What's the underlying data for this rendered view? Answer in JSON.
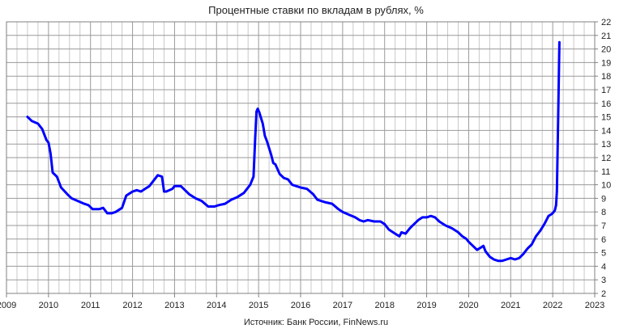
{
  "chart_data": {
    "type": "line",
    "title": "Процентные ставки по вкладам в рублях, %",
    "source": "Источник: Банк России, FinNews.ru",
    "xlabel": "",
    "ylabel": "",
    "xlim": [
      2009,
      2023
    ],
    "ylim": [
      2,
      22
    ],
    "x_ticks": [
      "2009",
      "2010",
      "2011",
      "2012",
      "2013",
      "2014",
      "2015",
      "2016",
      "2017",
      "2018",
      "2019",
      "2020",
      "2021",
      "2022",
      "2023"
    ],
    "y_ticks": [
      "2",
      "3",
      "4",
      "5",
      "6",
      "7",
      "8",
      "9",
      "10",
      "11",
      "12",
      "13",
      "14",
      "15",
      "16",
      "17",
      "18",
      "19",
      "20",
      "21",
      "22"
    ],
    "grid": true,
    "line_color": "#0000ff",
    "series": [
      {
        "x": [
          2009.5,
          2009.6,
          2009.75,
          2009.85,
          2009.95,
          2010.0,
          2010.05,
          2010.1,
          2010.2,
          2010.3,
          2010.45,
          2010.55,
          2010.7,
          2010.85,
          2010.95,
          2011.05,
          2011.2,
          2011.3,
          2011.4,
          2011.5,
          2011.6,
          2011.75,
          2011.85,
          2011.95,
          2012.0,
          2012.1,
          2012.2,
          2012.3,
          2012.4,
          2012.5,
          2012.6,
          2012.7,
          2012.75,
          2012.8,
          2012.95,
          2013.0,
          2013.05,
          2013.15,
          2013.25,
          2013.35,
          2013.5,
          2013.65,
          2013.8,
          2013.95,
          2014.05,
          2014.2,
          2014.35,
          2014.5,
          2014.65,
          2014.8,
          2014.88,
          2014.92,
          2014.95,
          2014.98,
          2015.02,
          2015.05,
          2015.1,
          2015.15,
          2015.2,
          2015.3,
          2015.35,
          2015.4,
          2015.5,
          2015.6,
          2015.7,
          2015.8,
          2015.9,
          2016.0,
          2016.15,
          2016.3,
          2016.4,
          2016.5,
          2016.6,
          2016.75,
          2016.9,
          2017.0,
          2017.15,
          2017.3,
          2017.4,
          2017.5,
          2017.6,
          2017.75,
          2017.9,
          2018.0,
          2018.1,
          2018.25,
          2018.35,
          2018.4,
          2018.5,
          2018.6,
          2018.7,
          2018.8,
          2018.9,
          2019.0,
          2019.1,
          2019.2,
          2019.3,
          2019.45,
          2019.6,
          2019.75,
          2019.85,
          2019.95,
          2020.0,
          2020.1,
          2020.2,
          2020.3,
          2020.35,
          2020.4,
          2020.5,
          2020.6,
          2020.7,
          2020.8,
          2020.9,
          2021.0,
          2021.1,
          2021.2,
          2021.3,
          2021.4,
          2021.5,
          2021.6,
          2021.7,
          2021.8,
          2021.85,
          2021.9,
          2021.95,
          2022.0,
          2022.05,
          2022.08,
          2022.1,
          2022.13,
          2022.16
        ],
        "values": [
          15.0,
          14.7,
          14.5,
          14.1,
          13.3,
          13.1,
          12.3,
          10.9,
          10.6,
          9.8,
          9.3,
          9.0,
          8.8,
          8.6,
          8.5,
          8.2,
          8.2,
          8.3,
          7.9,
          7.9,
          8.0,
          8.3,
          9.2,
          9.4,
          9.5,
          9.6,
          9.5,
          9.7,
          9.9,
          10.3,
          10.7,
          10.6,
          9.5,
          9.5,
          9.7,
          9.9,
          9.9,
          9.9,
          9.6,
          9.3,
          9.0,
          8.8,
          8.4,
          8.4,
          8.5,
          8.6,
          8.9,
          9.1,
          9.4,
          10.0,
          10.6,
          13.5,
          15.4,
          15.6,
          15.3,
          15.0,
          14.5,
          13.6,
          13.2,
          12.2,
          11.6,
          11.5,
          10.8,
          10.5,
          10.4,
          10.0,
          9.9,
          9.8,
          9.7,
          9.3,
          8.9,
          8.8,
          8.7,
          8.6,
          8.2,
          8.0,
          7.8,
          7.6,
          7.4,
          7.3,
          7.4,
          7.3,
          7.3,
          7.1,
          6.7,
          6.4,
          6.2,
          6.5,
          6.4,
          6.8,
          7.1,
          7.4,
          7.6,
          7.6,
          7.7,
          7.6,
          7.3,
          7.0,
          6.8,
          6.5,
          6.2,
          6.0,
          5.8,
          5.5,
          5.2,
          5.4,
          5.5,
          5.1,
          4.7,
          4.5,
          4.4,
          4.4,
          4.5,
          4.6,
          4.5,
          4.6,
          4.9,
          5.3,
          5.6,
          6.2,
          6.6,
          7.1,
          7.4,
          7.7,
          7.8,
          7.9,
          8.1,
          8.5,
          9.5,
          15.0,
          20.5
        ]
      }
    ]
  }
}
